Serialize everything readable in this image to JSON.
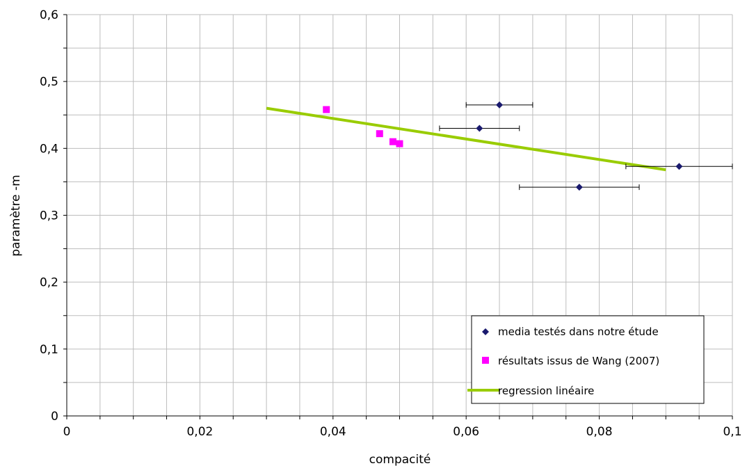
{
  "chart_data": {
    "type": "scatter",
    "xlabel": "compacité",
    "ylabel": "paramètre -m",
    "xlim": [
      0,
      0.1
    ],
    "ylim": [
      0,
      0.6
    ],
    "x_ticks": [
      "0",
      "0,02",
      "0,04",
      "0,06",
      "0,08",
      "0,1"
    ],
    "y_ticks": [
      "0",
      "0,1",
      "0,2",
      "0,3",
      "0,4",
      "0,5",
      "0,6"
    ],
    "grid": true,
    "legend_position": "bottom-right",
    "series": [
      {
        "name": "media testés dans notre étude",
        "marker": "diamond",
        "color": "#1a1a6e",
        "points": [
          {
            "x": 0.065,
            "y": 0.465,
            "xerr": 0.005
          },
          {
            "x": 0.062,
            "y": 0.43,
            "xerr": 0.006
          },
          {
            "x": 0.092,
            "y": 0.373,
            "xerr": 0.008
          },
          {
            "x": 0.077,
            "y": 0.342,
            "xerr": 0.009
          }
        ]
      },
      {
        "name": "résultats issus de Wang (2007)",
        "marker": "square",
        "color": "#ff00ff",
        "points": [
          {
            "x": 0.039,
            "y": 0.458
          },
          {
            "x": 0.047,
            "y": 0.422
          },
          {
            "x": 0.049,
            "y": 0.41
          },
          {
            "x": 0.05,
            "y": 0.407
          }
        ]
      },
      {
        "name": "regression linéaire",
        "marker": "line",
        "color": "#99cc00",
        "points": [
          {
            "x": 0.03,
            "y": 0.46
          },
          {
            "x": 0.09,
            "y": 0.368
          }
        ]
      }
    ]
  }
}
